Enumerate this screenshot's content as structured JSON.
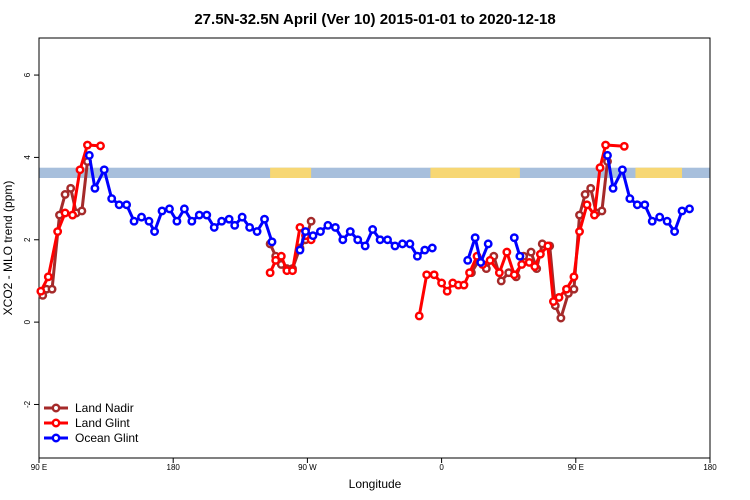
{
  "chart_data": {
    "type": "line",
    "title": "27.5N-32.5N April (Ver 10)   2015-01-01 to 2020-12-18",
    "xlabel": "Longitude",
    "ylabel": "XCO2 - MLO trend (ppm)",
    "xlim": [
      0,
      360
    ],
    "ylim": [
      -3.3,
      6.9
    ],
    "xticks": [
      {
        "value": 0,
        "label": "90 E"
      },
      {
        "value": 72,
        "label": "180"
      },
      {
        "value": 144,
        "label": "90 W"
      },
      {
        "value": 216,
        "label": "0"
      },
      {
        "value": 288,
        "label": "90 E"
      },
      {
        "value": 360,
        "label": "180"
      }
    ],
    "yticks": [
      -2,
      0,
      2,
      4,
      6
    ],
    "grid": false,
    "legend_position": "bottom-left",
    "map_band": {
      "y_min": 3.5,
      "y_max": 3.75,
      "land_color": "#f7d774",
      "ocean_color": "#a7bfdc",
      "land_ranges": [
        [
          124,
          146
        ],
        [
          210,
          258
        ],
        [
          320,
          345
        ]
      ]
    },
    "series": [
      {
        "name": "Land Nadir",
        "color": "#a52a2a",
        "points": [
          [
            2,
            0.65
          ],
          [
            4,
            0.8
          ],
          [
            7,
            0.8
          ],
          [
            11,
            2.6
          ],
          [
            14,
            3.1
          ],
          [
            17,
            3.25
          ],
          [
            20,
            2.65
          ],
          [
            23,
            2.7
          ],
          [
            26,
            3.9
          ],
          null,
          [
            124,
            1.9
          ],
          [
            127,
            1.6
          ],
          [
            130,
            1.4
          ],
          [
            133,
            1.3
          ],
          [
            136,
            1.3
          ],
          [
            140,
            1.8
          ],
          [
            143,
            2.0
          ],
          [
            146,
            2.45
          ],
          null,
          [
            232,
            1.2
          ],
          [
            236,
            1.5
          ],
          [
            240,
            1.3
          ],
          [
            244,
            1.6
          ],
          [
            248,
            1.0
          ],
          [
            252,
            1.2
          ],
          [
            256,
            1.1
          ],
          [
            260,
            1.6
          ],
          [
            264,
            1.7
          ],
          [
            267,
            1.3
          ],
          [
            270,
            1.9
          ],
          [
            274,
            1.85
          ],
          [
            277,
            0.4
          ],
          [
            280,
            0.1
          ],
          [
            284,
            0.7
          ],
          [
            287,
            0.8
          ],
          [
            290,
            2.6
          ],
          [
            293,
            3.1
          ],
          [
            296,
            3.25
          ],
          [
            299,
            2.65
          ],
          [
            302,
            2.7
          ],
          [
            305,
            3.9
          ]
        ]
      },
      {
        "name": "Land Glint",
        "color": "#ff0000",
        "points": [
          [
            1,
            0.75
          ],
          [
            5,
            1.1
          ],
          [
            10,
            2.2
          ],
          [
            14,
            2.65
          ],
          [
            18,
            2.6
          ],
          [
            22,
            3.7
          ],
          [
            26,
            4.3
          ],
          [
            33,
            4.28
          ],
          null,
          [
            124,
            1.2
          ],
          [
            127,
            1.5
          ],
          [
            130,
            1.6
          ],
          [
            133,
            1.25
          ],
          [
            136,
            1.25
          ],
          [
            140,
            2.3
          ],
          [
            143,
            2.1
          ],
          [
            146,
            2.0
          ],
          null,
          [
            204,
            0.15
          ],
          [
            208,
            1.15
          ],
          [
            212,
            1.15
          ],
          [
            216,
            0.95
          ],
          [
            219,
            0.75
          ],
          [
            222,
            0.95
          ],
          [
            225,
            0.9
          ],
          [
            228,
            0.9
          ],
          [
            231,
            1.2
          ],
          [
            235,
            1.6
          ],
          [
            238,
            1.4
          ],
          [
            242,
            1.5
          ],
          [
            247,
            1.2
          ],
          [
            251,
            1.7
          ],
          [
            255,
            1.15
          ],
          [
            259,
            1.4
          ],
          [
            263,
            1.45
          ],
          [
            266,
            1.35
          ],
          [
            269,
            1.65
          ],
          [
            273,
            1.85
          ],
          [
            276,
            0.5
          ],
          [
            279,
            0.6
          ],
          [
            283,
            0.8
          ],
          [
            287,
            1.1
          ],
          [
            290,
            2.2
          ],
          [
            294,
            2.85
          ],
          [
            298,
            2.6
          ],
          [
            301,
            3.75
          ],
          [
            304,
            4.3
          ],
          [
            314,
            4.27
          ]
        ]
      },
      {
        "name": "Ocean Glint",
        "color": "#0000ff",
        "points": [
          [
            27,
            4.05
          ],
          [
            30,
            3.25
          ],
          [
            35,
            3.7
          ],
          [
            39,
            3.0
          ],
          [
            43,
            2.85
          ],
          [
            47,
            2.85
          ],
          [
            51,
            2.45
          ],
          [
            55,
            2.55
          ],
          [
            59,
            2.45
          ],
          [
            62,
            2.2
          ],
          [
            66,
            2.7
          ],
          [
            70,
            2.75
          ],
          [
            74,
            2.45
          ],
          [
            78,
            2.75
          ],
          [
            82,
            2.45
          ],
          [
            86,
            2.6
          ],
          [
            90,
            2.6
          ],
          [
            94,
            2.3
          ],
          [
            98,
            2.45
          ],
          [
            102,
            2.5
          ],
          [
            105,
            2.35
          ],
          [
            109,
            2.55
          ],
          [
            113,
            2.3
          ],
          [
            117,
            2.2
          ],
          [
            121,
            2.5
          ],
          [
            125,
            1.95
          ],
          null,
          [
            140,
            1.75
          ],
          [
            143,
            2.2
          ],
          [
            147,
            2.1
          ],
          [
            151,
            2.2
          ],
          [
            155,
            2.35
          ],
          [
            159,
            2.3
          ],
          [
            163,
            2.0
          ],
          [
            167,
            2.2
          ],
          [
            171,
            2.0
          ],
          [
            175,
            1.85
          ],
          [
            179,
            2.25
          ],
          [
            183,
            2.0
          ],
          [
            187,
            2.0
          ],
          [
            191,
            1.85
          ],
          [
            195,
            1.9
          ],
          [
            199,
            1.9
          ],
          [
            203,
            1.6
          ],
          [
            207,
            1.75
          ],
          [
            211,
            1.8
          ],
          null,
          [
            230,
            1.5
          ],
          [
            234,
            2.05
          ],
          [
            237,
            1.45
          ],
          [
            241,
            1.9
          ],
          null,
          [
            255,
            2.05
          ],
          [
            258,
            1.6
          ],
          null,
          [
            305,
            4.05
          ],
          [
            308,
            3.25
          ],
          [
            313,
            3.7
          ],
          [
            317,
            3.0
          ],
          [
            321,
            2.85
          ],
          [
            325,
            2.85
          ],
          [
            329,
            2.45
          ],
          [
            333,
            2.55
          ],
          [
            337,
            2.45
          ],
          [
            341,
            2.2
          ],
          [
            345,
            2.7
          ],
          [
            349,
            2.75
          ]
        ]
      }
    ]
  }
}
